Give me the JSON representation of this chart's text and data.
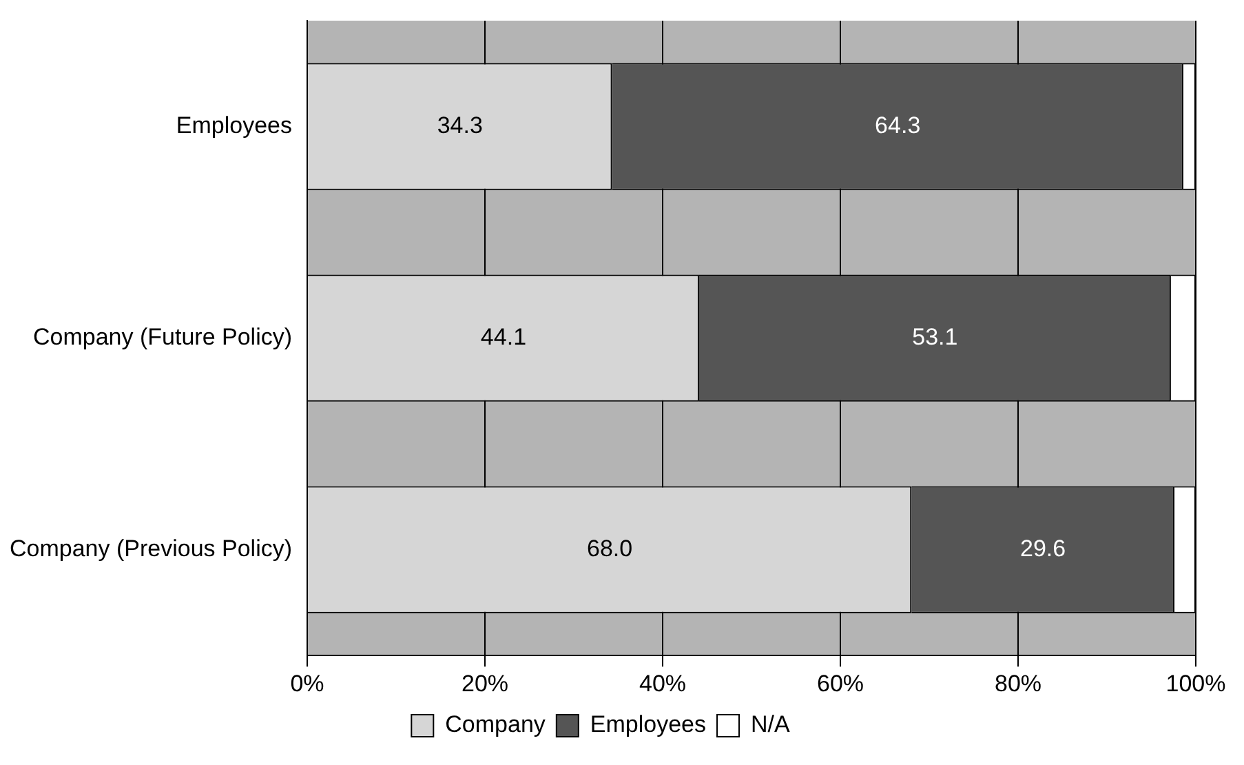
{
  "chart_data": {
    "type": "bar",
    "orientation": "horizontal",
    "stacked": true,
    "categories": [
      "Employees",
      "Company (Future Policy)",
      "Company (Previous Policy)"
    ],
    "series": [
      {
        "name": "Company",
        "color": "#d6d6d6",
        "values": [
          34.3,
          44.1,
          68.0
        ],
        "value_labels": [
          "34.3",
          "44.1",
          "68.0"
        ]
      },
      {
        "name": "Employees",
        "color": "#555555",
        "values": [
          64.3,
          53.1,
          29.6
        ],
        "value_labels": [
          "64.3",
          "53.1",
          "29.6"
        ]
      },
      {
        "name": "N/A",
        "color": "#ffffff",
        "values": [
          1.4,
          2.8,
          2.4
        ],
        "value_labels": [
          null,
          null,
          null
        ]
      }
    ],
    "xlim": [
      0,
      100
    ],
    "xticks": [
      {
        "value": 0,
        "label": "0%"
      },
      {
        "value": 20,
        "label": "20%"
      },
      {
        "value": 40,
        "label": "40%"
      },
      {
        "value": 60,
        "label": "60%"
      },
      {
        "value": 80,
        "label": "80%"
      },
      {
        "value": 100,
        "label": "100%"
      }
    ],
    "grid": "x",
    "legend": "bottom"
  }
}
